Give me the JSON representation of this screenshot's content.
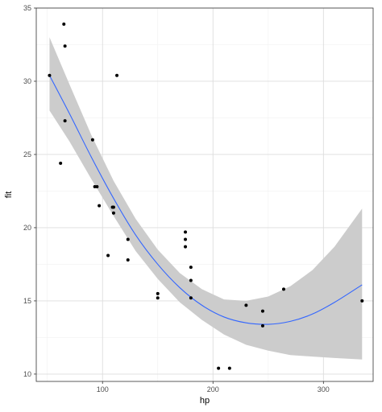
{
  "chart_data": {
    "type": "scatter",
    "xlabel": "hp",
    "ylabel": "fit",
    "xlim": [
      40,
      345
    ],
    "ylim": [
      9.5,
      35
    ],
    "x_ticks": [
      100,
      200,
      300
    ],
    "y_ticks": [
      10,
      15,
      20,
      25,
      30,
      35
    ],
    "x_tick_labels": [
      "100",
      "200",
      "300"
    ],
    "y_tick_labels": [
      "10",
      "15",
      "20",
      "25",
      "30",
      "35"
    ],
    "grid": true,
    "legend": "none",
    "colors": {
      "panel_border": "#333333",
      "grid_major": "#dddddd",
      "grid_minor": "#f0f0f0",
      "points": "#000000",
      "fit_line": "#3366ff",
      "ribbon": "#cccccc"
    },
    "points": [
      {
        "x": 52,
        "y": 30.4
      },
      {
        "x": 62,
        "y": 24.4
      },
      {
        "x": 65,
        "y": 33.9
      },
      {
        "x": 66,
        "y": 32.4
      },
      {
        "x": 66,
        "y": 27.3
      },
      {
        "x": 91,
        "y": 26.0
      },
      {
        "x": 93,
        "y": 22.8
      },
      {
        "x": 95,
        "y": 22.8
      },
      {
        "x": 97,
        "y": 21.5
      },
      {
        "x": 105,
        "y": 18.1
      },
      {
        "x": 109,
        "y": 21.4
      },
      {
        "x": 110,
        "y": 21.0
      },
      {
        "x": 110,
        "y": 21.4
      },
      {
        "x": 113,
        "y": 30.4
      },
      {
        "x": 123,
        "y": 19.2
      },
      {
        "x": 123,
        "y": 17.8
      },
      {
        "x": 150,
        "y": 15.5
      },
      {
        "x": 150,
        "y": 15.2
      },
      {
        "x": 175,
        "y": 18.7
      },
      {
        "x": 175,
        "y": 19.2
      },
      {
        "x": 175,
        "y": 19.7
      },
      {
        "x": 180,
        "y": 16.4
      },
      {
        "x": 180,
        "y": 17.3
      },
      {
        "x": 180,
        "y": 15.2
      },
      {
        "x": 205,
        "y": 10.4
      },
      {
        "x": 215,
        "y": 10.4
      },
      {
        "x": 230,
        "y": 14.7
      },
      {
        "x": 245,
        "y": 13.3
      },
      {
        "x": 245,
        "y": 14.3
      },
      {
        "x": 264,
        "y": 15.8
      },
      {
        "x": 335,
        "y": 15.0
      }
    ],
    "fit": [
      {
        "x": 52,
        "y": 30.4,
        "lo": 28.0,
        "hi": 33.0
      },
      {
        "x": 70,
        "y": 27.8,
        "lo": 25.9,
        "hi": 29.8
      },
      {
        "x": 90,
        "y": 24.8,
        "lo": 23.3,
        "hi": 26.3
      },
      {
        "x": 110,
        "y": 22.0,
        "lo": 20.8,
        "hi": 23.2
      },
      {
        "x": 130,
        "y": 19.5,
        "lo": 18.4,
        "hi": 20.6
      },
      {
        "x": 150,
        "y": 17.5,
        "lo": 16.5,
        "hi": 18.5
      },
      {
        "x": 170,
        "y": 15.9,
        "lo": 14.9,
        "hi": 16.9
      },
      {
        "x": 190,
        "y": 14.7,
        "lo": 13.7,
        "hi": 15.8
      },
      {
        "x": 210,
        "y": 13.9,
        "lo": 12.7,
        "hi": 15.1
      },
      {
        "x": 230,
        "y": 13.5,
        "lo": 12.0,
        "hi": 15.0
      },
      {
        "x": 250,
        "y": 13.4,
        "lo": 11.6,
        "hi": 15.3
      },
      {
        "x": 270,
        "y": 13.6,
        "lo": 11.3,
        "hi": 16.0
      },
      {
        "x": 290,
        "y": 14.1,
        "lo": 11.2,
        "hi": 17.1
      },
      {
        "x": 310,
        "y": 14.9,
        "lo": 11.1,
        "hi": 18.7
      },
      {
        "x": 335,
        "y": 16.1,
        "lo": 11.0,
        "hi": 21.3
      }
    ]
  }
}
